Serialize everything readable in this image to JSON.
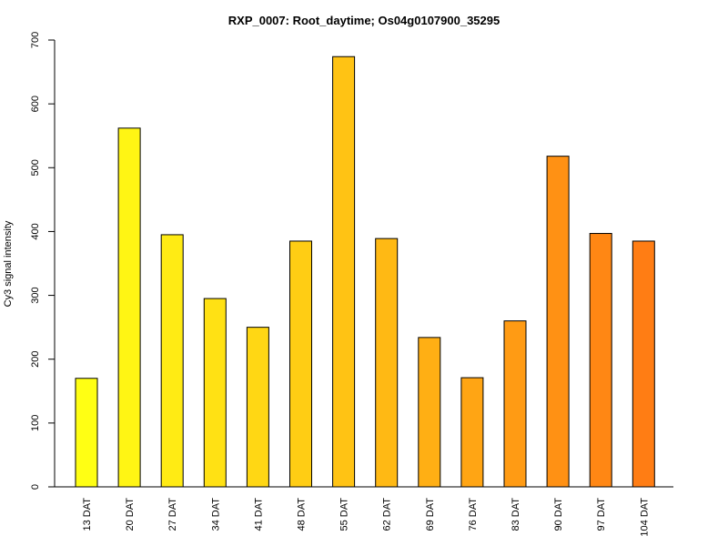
{
  "chart_data": {
    "type": "bar",
    "title": "RXP_0007: Root_daytime; Os04g0107900_35295",
    "xlabel": "",
    "ylabel": "Cy3 signal intensity",
    "ylim": [
      0,
      700
    ],
    "yticks": [
      0,
      100,
      200,
      300,
      400,
      500,
      600,
      700
    ],
    "grid": false,
    "categories": [
      "13 DAT",
      "20 DAT",
      "27 DAT",
      "34 DAT",
      "41 DAT",
      "48 DAT",
      "55 DAT",
      "62 DAT",
      "69 DAT",
      "76 DAT",
      "83 DAT",
      "90 DAT",
      "97 DAT",
      "104 DAT"
    ],
    "values": [
      170,
      562,
      395,
      295,
      250,
      385,
      674,
      389,
      234,
      171,
      260,
      518,
      397,
      385
    ],
    "colors": [
      "#FFFF14",
      "#FFF514",
      "#FFEB14",
      "#FFE114",
      "#FFD714",
      "#FFCD14",
      "#FFC314",
      "#FFB914",
      "#FFAF14",
      "#FFA514",
      "#FF9B14",
      "#FF9114",
      "#FF8714",
      "#FF7D14"
    ]
  }
}
